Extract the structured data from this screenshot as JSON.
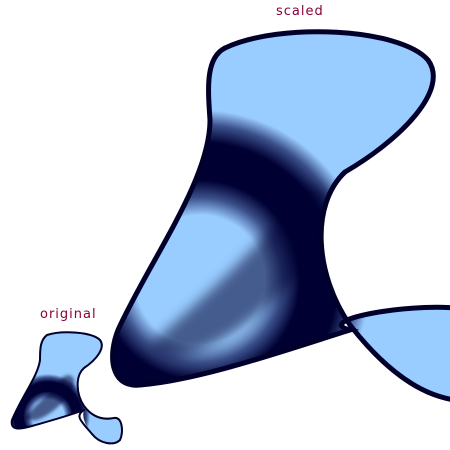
{
  "labels": {
    "scaled": "scaled",
    "original": "original"
  },
  "colors": {
    "label_text": "#8b0036",
    "fill_light": "#99ccff",
    "fill_dark": "#000033",
    "stroke": "#00002b",
    "background": "#ffffff"
  },
  "scale_factor": 4
}
